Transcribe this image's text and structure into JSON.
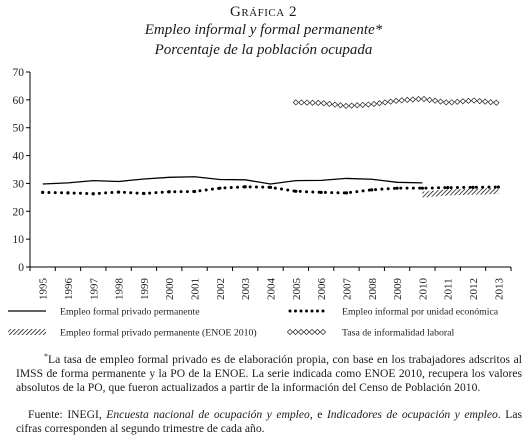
{
  "header": {
    "label": "Gráfica 2",
    "title": "Empleo informal y formal permanente*",
    "subtitle": "Porcentaje de la población ocupada"
  },
  "chart_data": {
    "type": "line",
    "ylim": [
      0,
      70
    ],
    "yticks": [
      0,
      10,
      20,
      30,
      40,
      50,
      60,
      70
    ],
    "x": [
      "1995",
      "1996",
      "1997",
      "1998",
      "1999",
      "2000",
      "2001",
      "2002",
      "2003",
      "2004",
      "2005",
      "2006",
      "2007",
      "2008",
      "2009",
      "2010",
      "2011",
      "2012",
      "2013"
    ],
    "grid": false,
    "legend_position": "bottom",
    "series": [
      {
        "name": "Empleo formal privado permanente",
        "style": "solid",
        "color": "#000000",
        "points": [
          [
            "1995",
            29.8
          ],
          [
            "1996",
            30.2
          ],
          [
            "1997",
            31.0
          ],
          [
            "1998",
            30.7
          ],
          [
            "1999",
            31.6
          ],
          [
            "2000",
            32.2
          ],
          [
            "2001",
            32.4
          ],
          [
            "2002",
            31.4
          ],
          [
            "2003",
            31.3
          ],
          [
            "2004",
            29.8
          ],
          [
            "2005",
            31.0
          ],
          [
            "2006",
            31.1
          ],
          [
            "2007",
            31.8
          ],
          [
            "2008",
            31.5
          ],
          [
            "2009",
            30.4
          ],
          [
            "2010",
            30.2
          ]
        ]
      },
      {
        "name": "Empleo informal por unidad económica",
        "style": "dotted",
        "color": "#000000",
        "points": [
          [
            "1995",
            26.8
          ],
          [
            "1996",
            26.6
          ],
          [
            "1997",
            26.3
          ],
          [
            "1998",
            26.9
          ],
          [
            "1999",
            26.4
          ],
          [
            "2000",
            27.0
          ],
          [
            "2001",
            27.1
          ],
          [
            "2002",
            28.3
          ],
          [
            "2003",
            28.8
          ],
          [
            "2004",
            28.6
          ],
          [
            "2005",
            27.2
          ],
          [
            "2006",
            26.8
          ],
          [
            "2007",
            26.6
          ],
          [
            "2008",
            27.7
          ],
          [
            "2009",
            28.3
          ],
          [
            "2010",
            28.3
          ],
          [
            "2011",
            28.5
          ],
          [
            "2012",
            28.6
          ],
          [
            "2013",
            28.7
          ]
        ]
      },
      {
        "name": "Empleo formal privado permanente (ENOE 2010)",
        "style": "hatched",
        "color": "#000000",
        "points": [
          [
            "2010",
            26.0
          ],
          [
            "2011",
            26.8
          ],
          [
            "2012",
            27.0
          ],
          [
            "2013",
            27.3
          ]
        ]
      },
      {
        "name": "Tasa de informalidad laboral",
        "style": "diamonds",
        "color": "#000000",
        "points": [
          [
            "2005",
            59.1
          ],
          [
            "2006",
            58.9
          ],
          [
            "2007",
            57.8
          ],
          [
            "2008",
            58.4
          ],
          [
            "2009",
            59.7
          ],
          [
            "2010",
            60.4
          ],
          [
            "2011",
            59.0
          ],
          [
            "2012",
            59.8
          ],
          [
            "2013",
            58.9
          ]
        ]
      }
    ]
  },
  "notes": {
    "note1": "La tasa de empleo formal privado es de elaboración propia, con base en los trabajadores adscritos al IMSS de forma permanente y la PO de la ENOE. La serie indicada como ENOE 2010, recupera los valores absolutos de la PO, que fueron actualizados a partir de la información del Censo de Población 2010.",
    "note1_mark": "*",
    "source_label": "Fuente:",
    "source_part1": "INEGI,",
    "source_italic1": "Encuesta nacional de ocupación y empleo",
    "source_part2": ", e",
    "source_italic2": "Indicadores de ocupación y empleo",
    "source_part3": ". Las cifras corresponden al segundo trimestre de cada año."
  }
}
